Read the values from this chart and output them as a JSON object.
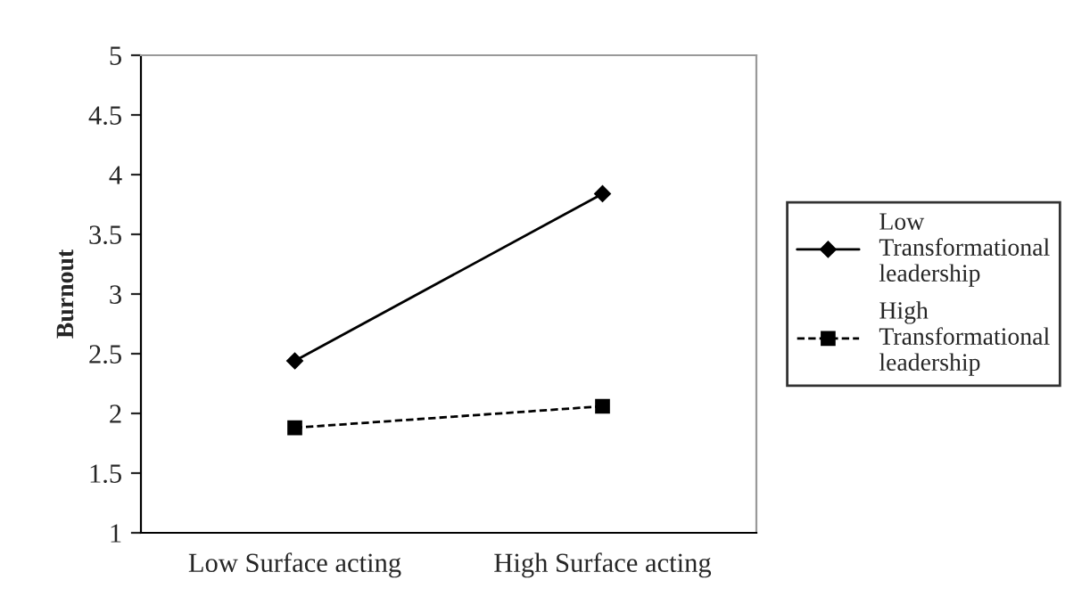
{
  "chart_data": {
    "type": "line",
    "ylabel": "Burnout",
    "categories": [
      "Low Surface acting",
      "High Surface acting"
    ],
    "series": [
      {
        "name": "Low Transformational leadership",
        "color": "#000000",
        "values": [
          2.44,
          3.84
        ],
        "marker": "diamond",
        "line_style": "solid"
      },
      {
        "name": "High Transformational leadership",
        "color": "#000000",
        "values": [
          1.88,
          2.06
        ],
        "marker": "square",
        "line_style": "dashed"
      }
    ],
    "ylim": [
      1,
      5
    ],
    "yticks": [
      1,
      1.5,
      2,
      2.5,
      3,
      3.5,
      4,
      4.5,
      5
    ],
    "grid": false,
    "legend": "right"
  }
}
